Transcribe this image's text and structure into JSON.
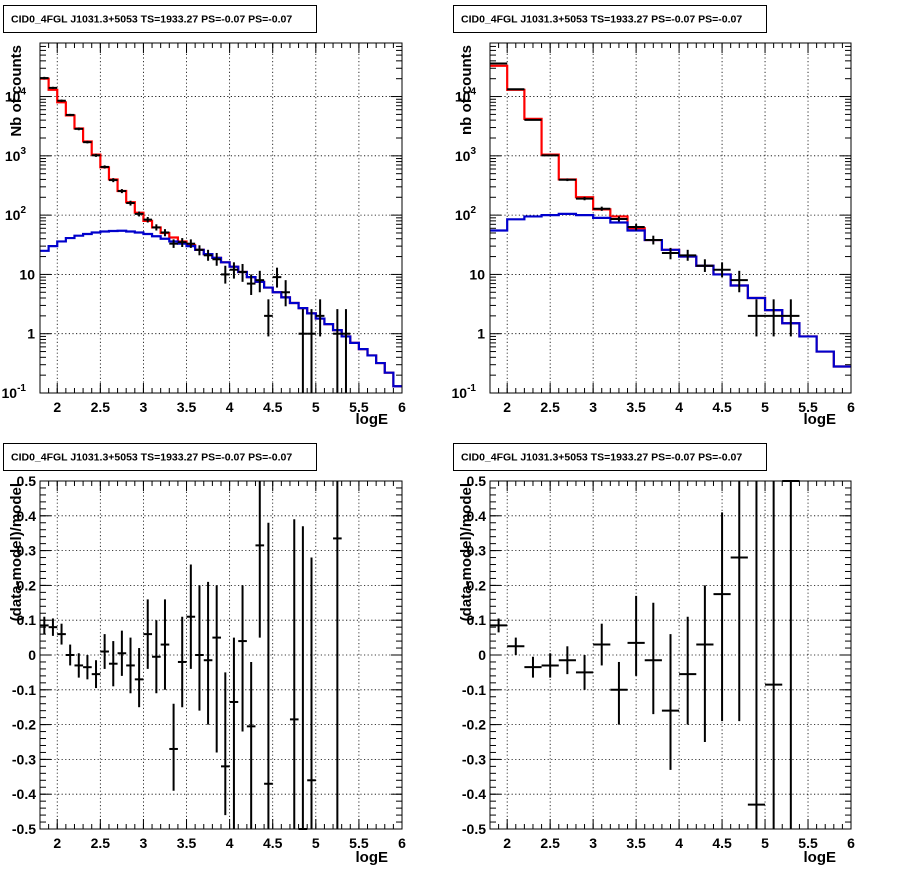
{
  "colors": {
    "total_model": "#ff0000",
    "component_model": "#0000cc",
    "data": "#000000",
    "grid": "#000000"
  },
  "chart_data": [
    {
      "type": "line",
      "title": "CID0_4FGL J1031.3+5053 TS=1933.27 PS=-0.07 PS=-0.07",
      "xlabel": "logE",
      "ylabel": "Nb of counts",
      "xlim": [
        1.8,
        6.0
      ],
      "ylim": [
        0.1,
        80000
      ],
      "yscale": "log",
      "grid": true,
      "x_ticks": [
        "2",
        "2.5",
        "3",
        "3.5",
        "4",
        "4.5",
        "5",
        "5.5",
        "6"
      ],
      "y_ticks": [
        "10^-1",
        "1",
        "10",
        "10^2",
        "10^3",
        "10^4"
      ],
      "bin_edges": [
        1.8,
        1.9,
        2.0,
        2.1,
        2.2,
        2.3,
        2.4,
        2.5,
        2.6,
        2.7,
        2.8,
        2.9,
        3.0,
        3.1,
        3.2,
        3.3,
        3.4,
        3.5,
        3.6,
        3.7,
        3.8,
        3.9,
        4.0,
        4.1,
        4.2,
        4.3,
        4.4,
        4.5,
        4.6,
        4.7,
        4.8,
        4.9,
        5.0,
        5.1,
        5.2,
        5.3,
        5.4,
        5.5,
        5.6,
        5.7,
        5.8,
        5.9,
        6.0
      ],
      "series": [
        {
          "role": "total_model",
          "values": [
            20000,
            13000,
            8000,
            4800,
            2900,
            1750,
            1050,
            640,
            400,
            255,
            165,
            110,
            80,
            62,
            50,
            42,
            36,
            31,
            26,
            22,
            19,
            16,
            13.5,
            11,
            9,
            7.5,
            6,
            5,
            4.1,
            3.3,
            2.7,
            2.2,
            1.8,
            1.45,
            1.15,
            0.9,
            0.7,
            0.55,
            0.43,
            0.32,
            0.22,
            0.13
          ]
        },
        {
          "role": "component_model",
          "values": [
            25,
            30,
            36,
            41,
            45,
            48,
            51,
            53,
            54,
            54.5,
            53,
            51,
            48,
            44,
            40,
            36,
            33,
            30,
            26,
            22,
            19,
            16,
            13.5,
            11,
            9,
            7.5,
            6,
            5,
            4.1,
            3.3,
            2.7,
            2.2,
            1.8,
            1.45,
            1.15,
            0.9,
            0.7,
            0.55,
            0.43,
            0.32,
            0.22,
            0.13
          ]
        }
      ],
      "points": [
        {
          "x": 1.85,
          "y": 20500,
          "ylo": 19500,
          "yhi": 21500
        },
        {
          "x": 1.95,
          "y": 14000,
          "ylo": 13500,
          "yhi": 14600
        },
        {
          "x": 2.05,
          "y": 8500,
          "ylo": 8100,
          "yhi": 8900
        },
        {
          "x": 2.15,
          "y": 4900,
          "ylo": 4700,
          "yhi": 5100
        },
        {
          "x": 2.25,
          "y": 2850,
          "ylo": 2700,
          "yhi": 3000
        },
        {
          "x": 2.35,
          "y": 1700,
          "ylo": 1620,
          "yhi": 1790
        },
        {
          "x": 2.45,
          "y": 1020,
          "ylo": 960,
          "yhi": 1080
        },
        {
          "x": 2.55,
          "y": 650,
          "ylo": 610,
          "yhi": 690
        },
        {
          "x": 2.65,
          "y": 390,
          "ylo": 360,
          "yhi": 420
        },
        {
          "x": 2.75,
          "y": 255,
          "ylo": 235,
          "yhi": 275
        },
        {
          "x": 2.85,
          "y": 160,
          "ylo": 145,
          "yhi": 175
        },
        {
          "x": 2.95,
          "y": 105,
          "ylo": 95,
          "yhi": 115
        },
        {
          "x": 3.05,
          "y": 84,
          "ylo": 75,
          "yhi": 93
        },
        {
          "x": 3.15,
          "y": 62,
          "ylo": 55,
          "yhi": 70
        },
        {
          "x": 3.25,
          "y": 51,
          "ylo": 44,
          "yhi": 58
        },
        {
          "x": 3.35,
          "y": 33,
          "ylo": 28,
          "yhi": 39
        },
        {
          "x": 3.45,
          "y": 35,
          "ylo": 29,
          "yhi": 41
        },
        {
          "x": 3.55,
          "y": 33,
          "ylo": 28,
          "yhi": 39
        },
        {
          "x": 3.65,
          "y": 26,
          "ylo": 21,
          "yhi": 31
        },
        {
          "x": 3.75,
          "y": 21,
          "ylo": 17,
          "yhi": 26
        },
        {
          "x": 3.85,
          "y": 18,
          "ylo": 14,
          "yhi": 23
        },
        {
          "x": 3.95,
          "y": 10,
          "ylo": 7,
          "yhi": 14
        },
        {
          "x": 4.05,
          "y": 12,
          "ylo": 8.5,
          "yhi": 16
        },
        {
          "x": 4.15,
          "y": 11,
          "ylo": 7.5,
          "yhi": 15
        },
        {
          "x": 4.25,
          "y": 7,
          "ylo": 4.5,
          "yhi": 10
        },
        {
          "x": 4.35,
          "y": 8,
          "ylo": 5,
          "yhi": 11.5
        },
        {
          "x": 4.45,
          "y": 2,
          "ylo": 0.9,
          "yhi": 3.8
        },
        {
          "x": 4.55,
          "y": 9,
          "ylo": 6,
          "yhi": 13
        },
        {
          "x": 4.65,
          "y": 5,
          "ylo": 2.9,
          "yhi": 8
        },
        {
          "x": 4.85,
          "y": 1,
          "ylo": 0.1,
          "yhi": 2.6
        },
        {
          "x": 4.95,
          "y": 1,
          "ylo": 0.1,
          "yhi": 2.6
        },
        {
          "x": 5.05,
          "y": 2,
          "ylo": 0.9,
          "yhi": 3.8
        },
        {
          "x": 5.25,
          "y": 1,
          "ylo": 0.1,
          "yhi": 2.6
        },
        {
          "x": 5.35,
          "y": 1,
          "ylo": 0.1,
          "yhi": 2.6
        }
      ]
    },
    {
      "type": "line",
      "title": "CID0_4FGL J1031.3+5053 TS=1933.27 PS=-0.07 PS=-0.07",
      "xlabel": "logE",
      "ylabel": "nb of counts",
      "xlim": [
        1.8,
        6.0
      ],
      "ylim": [
        0.1,
        80000
      ],
      "yscale": "log",
      "grid": true,
      "x_ticks": [
        "2",
        "2.5",
        "3",
        "3.5",
        "4",
        "4.5",
        "5",
        "5.5",
        "6"
      ],
      "y_ticks": [
        "10^-1",
        "1",
        "10",
        "10^2",
        "10^3",
        "10^4"
      ],
      "bin_edges": [
        1.8,
        2.0,
        2.2,
        2.4,
        2.6,
        2.8,
        3.0,
        3.2,
        3.4,
        3.6,
        3.8,
        4.0,
        4.2,
        4.4,
        4.6,
        4.8,
        5.0,
        5.2,
        5.4,
        5.6,
        5.8,
        6.0
      ],
      "series": [
        {
          "role": "total_model",
          "values": [
            33000,
            13000,
            4200,
            1050,
            400,
            200,
            125,
            95,
            60,
            38,
            26,
            20,
            14,
            10,
            6.5,
            4,
            2.5,
            1.5,
            0.9,
            0.5,
            0.28
          ]
        },
        {
          "role": "component_model",
          "values": [
            55,
            85,
            95,
            100,
            105,
            100,
            90,
            75,
            55,
            38,
            26,
            20,
            14,
            10,
            6.5,
            4,
            2.5,
            1.5,
            0.9,
            0.5,
            0.28
          ]
        }
      ],
      "points": [
        {
          "x": 1.9,
          "y": 36000,
          "ylo": 35000,
          "yhi": 37000
        },
        {
          "x": 2.1,
          "y": 13300,
          "ylo": 13000,
          "yhi": 13600
        },
        {
          "x": 2.3,
          "y": 4050,
          "ylo": 3950,
          "yhi": 4150
        },
        {
          "x": 2.5,
          "y": 1020,
          "ylo": 990,
          "yhi": 1050
        },
        {
          "x": 2.7,
          "y": 395,
          "ylo": 375,
          "yhi": 415
        },
        {
          "x": 2.9,
          "y": 190,
          "ylo": 178,
          "yhi": 203
        },
        {
          "x": 3.1,
          "y": 128,
          "ylo": 118,
          "yhi": 139
        },
        {
          "x": 3.3,
          "y": 86,
          "ylo": 78,
          "yhi": 95
        },
        {
          "x": 3.5,
          "y": 63,
          "ylo": 55,
          "yhi": 71
        },
        {
          "x": 3.7,
          "y": 38,
          "ylo": 32,
          "yhi": 45
        },
        {
          "x": 3.9,
          "y": 23,
          "ylo": 18,
          "yhi": 28
        },
        {
          "x": 4.1,
          "y": 21,
          "ylo": 17,
          "yhi": 26
        },
        {
          "x": 4.3,
          "y": 14,
          "ylo": 11,
          "yhi": 18
        },
        {
          "x": 4.5,
          "y": 12,
          "ylo": 9,
          "yhi": 16
        },
        {
          "x": 4.7,
          "y": 8,
          "ylo": 5,
          "yhi": 11.5
        },
        {
          "x": 4.9,
          "y": 2,
          "ylo": 0.9,
          "yhi": 3.8
        },
        {
          "x": 5.1,
          "y": 2,
          "ylo": 0.9,
          "yhi": 3.8
        },
        {
          "x": 5.3,
          "y": 2,
          "ylo": 0.9,
          "yhi": 3.8
        }
      ]
    },
    {
      "type": "scatter",
      "title": "CID0_4FGL J1031.3+5053 TS=1933.27 PS=-0.07 PS=-0.07",
      "xlabel": "logE",
      "ylabel": "(data-model)/model",
      "xlim": [
        1.8,
        6.0
      ],
      "ylim": [
        -0.5,
        0.5
      ],
      "grid": true,
      "bin_width": 0.1,
      "x_ticks": [
        "2",
        "2.5",
        "3",
        "3.5",
        "4",
        "4.5",
        "5",
        "5.5",
        "6"
      ],
      "y_ticks": [
        "-0.5",
        "-0.4",
        "-0.3",
        "-0.2",
        "-0.1",
        "0",
        "0.1",
        "0.2",
        "0.3",
        "0.4",
        "0.5"
      ],
      "points": [
        {
          "x": 1.85,
          "y": 0.085,
          "ylo": 0.06,
          "yhi": 0.11
        },
        {
          "x": 1.95,
          "y": 0.08,
          "ylo": 0.055,
          "yhi": 0.105
        },
        {
          "x": 2.05,
          "y": 0.06,
          "ylo": 0.03,
          "yhi": 0.09
        },
        {
          "x": 2.15,
          "y": 0.0,
          "ylo": -0.03,
          "yhi": 0.03
        },
        {
          "x": 2.25,
          "y": -0.03,
          "ylo": -0.065,
          "yhi": 0.005
        },
        {
          "x": 2.35,
          "y": -0.035,
          "ylo": -0.07,
          "yhi": 0.0
        },
        {
          "x": 2.45,
          "y": -0.055,
          "ylo": -0.095,
          "yhi": -0.015
        },
        {
          "x": 2.55,
          "y": 0.01,
          "ylo": -0.04,
          "yhi": 0.06
        },
        {
          "x": 2.65,
          "y": -0.025,
          "ylo": -0.09,
          "yhi": 0.04
        },
        {
          "x": 2.75,
          "y": 0.005,
          "ylo": -0.06,
          "yhi": 0.07
        },
        {
          "x": 2.85,
          "y": -0.03,
          "ylo": -0.11,
          "yhi": 0.05
        },
        {
          "x": 2.95,
          "y": -0.07,
          "ylo": -0.15,
          "yhi": 0.02
        },
        {
          "x": 3.05,
          "y": 0.06,
          "ylo": -0.04,
          "yhi": 0.16
        },
        {
          "x": 3.15,
          "y": -0.005,
          "ylo": -0.11,
          "yhi": 0.1
        },
        {
          "x": 3.25,
          "y": 0.03,
          "ylo": -0.1,
          "yhi": 0.16
        },
        {
          "x": 3.35,
          "y": -0.27,
          "ylo": -0.39,
          "yhi": -0.14
        },
        {
          "x": 3.45,
          "y": -0.02,
          "ylo": -0.15,
          "yhi": 0.11
        },
        {
          "x": 3.55,
          "y": 0.11,
          "ylo": -0.04,
          "yhi": 0.26
        },
        {
          "x": 3.65,
          "y": 0.0,
          "ylo": -0.16,
          "yhi": 0.2
        },
        {
          "x": 3.75,
          "y": -0.015,
          "ylo": -0.2,
          "yhi": 0.21
        },
        {
          "x": 3.85,
          "y": 0.05,
          "ylo": -0.28,
          "yhi": 0.2
        },
        {
          "x": 3.95,
          "y": -0.32,
          "ylo": -0.46,
          "yhi": -0.05
        },
        {
          "x": 4.05,
          "y": -0.135,
          "ylo": -0.5,
          "yhi": 0.05
        },
        {
          "x": 4.15,
          "y": 0.04,
          "ylo": -0.22,
          "yhi": 0.2
        },
        {
          "x": 4.25,
          "y": -0.205,
          "ylo": -0.5,
          "yhi": -0.02
        },
        {
          "x": 4.35,
          "y": 0.315,
          "ylo": 0.05,
          "yhi": 0.5
        },
        {
          "x": 4.45,
          "y": -0.37,
          "ylo": -0.5,
          "yhi": 0.38
        },
        {
          "x": 4.75,
          "y": -0.185,
          "ylo": -0.5,
          "yhi": 0.39
        },
        {
          "x": 4.85,
          "y": -0.5,
          "ylo": -0.5,
          "yhi": 0.37
        },
        {
          "x": 4.95,
          "y": -0.36,
          "ylo": -0.5,
          "yhi": 0.28
        },
        {
          "x": 5.25,
          "y": 0.335,
          "ylo": -0.5,
          "yhi": 0.5
        }
      ]
    },
    {
      "type": "scatter",
      "title": "CID0_4FGL J1031.3+5053 TS=1933.27 PS=-0.07 PS=-0.07",
      "xlabel": "logE",
      "ylabel": "(data-model)/model",
      "xlim": [
        1.8,
        6.0
      ],
      "ylim": [
        -0.5,
        0.5
      ],
      "grid": true,
      "bin_width": 0.2,
      "x_ticks": [
        "2",
        "2.5",
        "3",
        "3.5",
        "4",
        "4.5",
        "5",
        "5.5",
        "6"
      ],
      "y_ticks": [
        "-0.5",
        "-0.4",
        "-0.3",
        "-0.2",
        "-0.1",
        "0",
        "0.1",
        "0.2",
        "0.3",
        "0.4",
        "0.5"
      ],
      "points": [
        {
          "x": 1.9,
          "y": 0.085,
          "ylo": 0.065,
          "yhi": 0.105
        },
        {
          "x": 2.1,
          "y": 0.025,
          "ylo": 0.0,
          "yhi": 0.05
        },
        {
          "x": 2.3,
          "y": -0.035,
          "ylo": -0.065,
          "yhi": -0.005
        },
        {
          "x": 2.5,
          "y": -0.03,
          "ylo": -0.065,
          "yhi": 0.005
        },
        {
          "x": 2.7,
          "y": -0.015,
          "ylo": -0.055,
          "yhi": 0.025
        },
        {
          "x": 2.9,
          "y": -0.05,
          "ylo": -0.1,
          "yhi": 0.0
        },
        {
          "x": 3.1,
          "y": 0.03,
          "ylo": -0.03,
          "yhi": 0.09
        },
        {
          "x": 3.3,
          "y": -0.1,
          "ylo": -0.2,
          "yhi": -0.02
        },
        {
          "x": 3.5,
          "y": 0.035,
          "ylo": -0.06,
          "yhi": 0.17
        },
        {
          "x": 3.7,
          "y": -0.015,
          "ylo": -0.17,
          "yhi": 0.15
        },
        {
          "x": 3.9,
          "y": -0.16,
          "ylo": -0.33,
          "yhi": 0.06
        },
        {
          "x": 4.1,
          "y": -0.055,
          "ylo": -0.2,
          "yhi": 0.11
        },
        {
          "x": 4.3,
          "y": 0.03,
          "ylo": -0.25,
          "yhi": 0.2
        },
        {
          "x": 4.5,
          "y": 0.175,
          "ylo": -0.19,
          "yhi": 0.41
        },
        {
          "x": 4.7,
          "y": 0.28,
          "ylo": -0.19,
          "yhi": 0.5
        },
        {
          "x": 4.9,
          "y": -0.43,
          "ylo": -0.5,
          "yhi": 0.5
        },
        {
          "x": 5.1,
          "y": -0.085,
          "ylo": -0.5,
          "yhi": 0.5
        },
        {
          "x": 5.3,
          "y": 0.5,
          "ylo": -0.5,
          "yhi": 0.5
        }
      ]
    }
  ]
}
